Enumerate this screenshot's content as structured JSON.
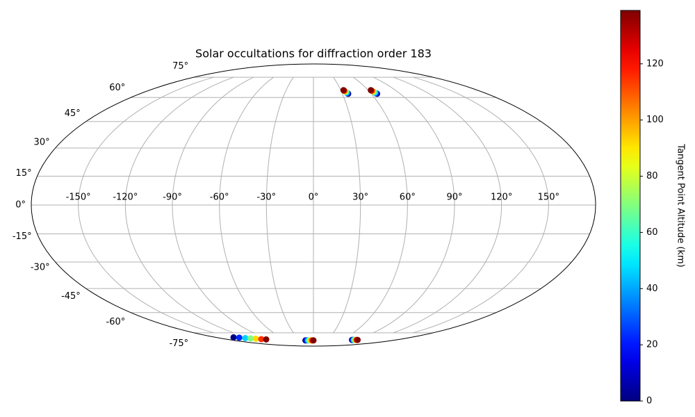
{
  "chart_data": {
    "type": "scatter",
    "projection": "mollweide",
    "title": "Solar occultations for diffraction order 183",
    "colorbar_label": "Tangent Point Altitude (km)",
    "colormap": "jet",
    "grid": true,
    "x": [
      36,
      35.5,
      35,
      34.5,
      34,
      33.5,
      33,
      66,
      65.5,
      65,
      64.5,
      64,
      63.5,
      63,
      -147,
      -139,
      -131,
      -123,
      -115,
      -107,
      -99,
      -18,
      -15,
      -12,
      -9,
      -6,
      -3,
      0,
      84,
      86,
      88,
      90,
      92,
      94,
      96
    ],
    "y": [
      62.5,
      62.9,
      63.3,
      63.8,
      64.2,
      64.6,
      65,
      62.5,
      62.9,
      63.3,
      63.8,
      64.2,
      64.6,
      65,
      -79,
      -79.3,
      -79.7,
      -80,
      -80.3,
      -80.7,
      -81,
      -82,
      -82,
      -82,
      -82,
      -82,
      -82,
      -82,
      -81.5,
      -81.5,
      -81.5,
      -81.5,
      -81.5,
      -81.5,
      -81.5
    ],
    "c": [
      0,
      23,
      46,
      69,
      92,
      115,
      139,
      0,
      23,
      46,
      69,
      92,
      115,
      139,
      0,
      23,
      46,
      69,
      92,
      115,
      139,
      0,
      23,
      46,
      69,
      92,
      115,
      139,
      0,
      23,
      46,
      69,
      92,
      115,
      139
    ],
    "xlim": [
      -180,
      180
    ],
    "ylim": [
      -90,
      90
    ],
    "xticks": [
      {
        "value": -150,
        "label": "-150°"
      },
      {
        "value": -120,
        "label": "-120°"
      },
      {
        "value": -90,
        "label": "-90°"
      },
      {
        "value": -60,
        "label": "-60°"
      },
      {
        "value": -30,
        "label": "-30°"
      },
      {
        "value": 0,
        "label": "0°"
      },
      {
        "value": 30,
        "label": "30°"
      },
      {
        "value": 60,
        "label": "60°"
      },
      {
        "value": 90,
        "label": "90°"
      },
      {
        "value": 120,
        "label": "120°"
      },
      {
        "value": 150,
        "label": "150°"
      }
    ],
    "yticks": [
      {
        "value": -75,
        "label": "-75°"
      },
      {
        "value": -60,
        "label": "-60°"
      },
      {
        "value": -45,
        "label": "-45°"
      },
      {
        "value": -30,
        "label": "-30°"
      },
      {
        "value": -15,
        "label": "-15°"
      },
      {
        "value": 0,
        "label": "0°"
      },
      {
        "value": 15,
        "label": "15°"
      },
      {
        "value": 30,
        "label": "30°"
      },
      {
        "value": 45,
        "label": "45°"
      },
      {
        "value": 60,
        "label": "60°"
      },
      {
        "value": 75,
        "label": "75°"
      }
    ],
    "clim": [
      0,
      139
    ],
    "cticks": [
      0,
      20,
      40,
      60,
      80,
      100,
      120
    ]
  }
}
